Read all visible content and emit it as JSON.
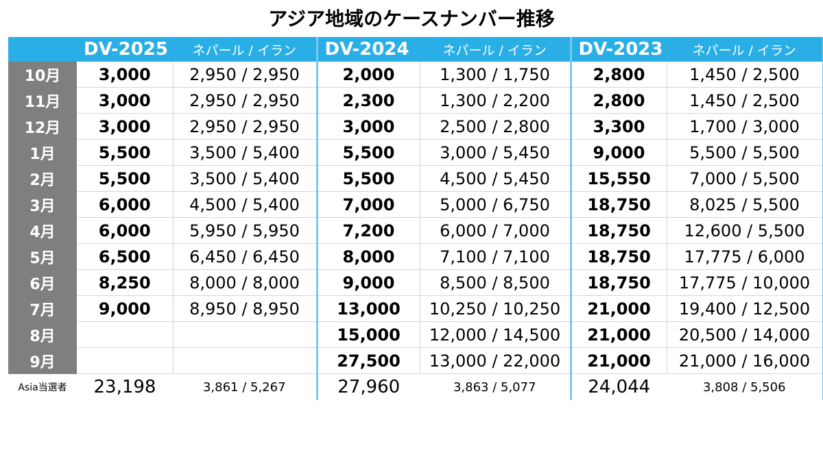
{
  "title": "アジア地域のケースナンバー推移",
  "headers": [
    {
      "dv": "DV-2025",
      "sub": "ネパール / イラン"
    },
    {
      "dv": "DV-2024",
      "sub": "ネパール / イラン"
    },
    {
      "dv": "DV-2023",
      "sub": "ネパール / イラン"
    }
  ],
  "rows": [
    {
      "month": "10月",
      "v2025": "3,000",
      "p2025": "2,950 / 2,950",
      "v2024": "2,000",
      "p2024": "1,300 / 1,750",
      "v2023": "2,800",
      "p2023": "1,450 / 2,500"
    },
    {
      "month": "11月",
      "v2025": "3,000",
      "p2025": "2,950 / 2,950",
      "v2024": "2,300",
      "p2024": "1,300 / 2,200",
      "v2023": "2,800",
      "p2023": "1,450 / 2,500"
    },
    {
      "month": "12月",
      "v2025": "3,000",
      "p2025": "2,950 / 2,950",
      "v2024": "3,000",
      "p2024": "2,500 / 2,800",
      "v2023": "3,300",
      "p2023": "1,700 / 3,000"
    },
    {
      "month": "1月",
      "v2025": "5,500",
      "p2025": "3,500 / 5,400",
      "v2024": "5,500",
      "p2024": "3,000 / 5,450",
      "v2023": "9,000",
      "p2023": "5,500 / 5,500"
    },
    {
      "month": "2月",
      "v2025": "5,500",
      "p2025": "3,500 / 5,400",
      "v2024": "5,500",
      "p2024": "4,500 / 5,450",
      "v2023": "15,550",
      "p2023": "7,000 / 5,500"
    },
    {
      "month": "3月",
      "v2025": "6,000",
      "p2025": "4,500 / 5,400",
      "v2024": "7,000",
      "p2024": "5,000 / 6,750",
      "v2023": "18,750",
      "p2023": "8,025 / 5,500"
    },
    {
      "month": "4月",
      "v2025": "6,000",
      "p2025": "5,950 / 5,950",
      "v2024": "7,200",
      "p2024": "6,000 / 7,000",
      "v2023": "18,750",
      "p2023": "12,600 / 5,500"
    },
    {
      "month": "5月",
      "v2025": "6,500",
      "p2025": "6,450 / 6,450",
      "v2024": "8,000",
      "p2024": "7,100 / 7,100",
      "v2023": "18,750",
      "p2023": "17,775 / 6,000"
    },
    {
      "month": "6月",
      "v2025": "8,250",
      "p2025": "8,000 / 8,000",
      "v2024": "9,000",
      "p2024": "8,500 / 8,500",
      "v2023": "18,750",
      "p2023": "17,775 / 10,000"
    },
    {
      "month": "7月",
      "v2025": "9,000",
      "p2025": "8,950 / 8,950",
      "v2024": "13,000",
      "p2024": "10,250 / 10,250",
      "v2023": "21,000",
      "p2023": "19,400 / 12,500"
    },
    {
      "month": "8月",
      "v2025": "",
      "p2025": "",
      "v2024": "15,000",
      "p2024": "12,000 / 14,500",
      "v2023": "21,000",
      "p2023": "20,500 / 14,000"
    },
    {
      "month": "9月",
      "v2025": "",
      "p2025": "",
      "v2024": "27,500",
      "p2024": "13,000 / 22,000",
      "v2023": "21,000",
      "p2023": "21,000 / 16,000"
    }
  ],
  "footer": {
    "label": "Asia当選者",
    "v2025": "23,198",
    "p2025": "3,861 / 5,267",
    "v2024": "27,960",
    "p2024": "3,863 / 5,077",
    "v2023": "24,044",
    "p2023": "3,808 / 5,506"
  }
}
